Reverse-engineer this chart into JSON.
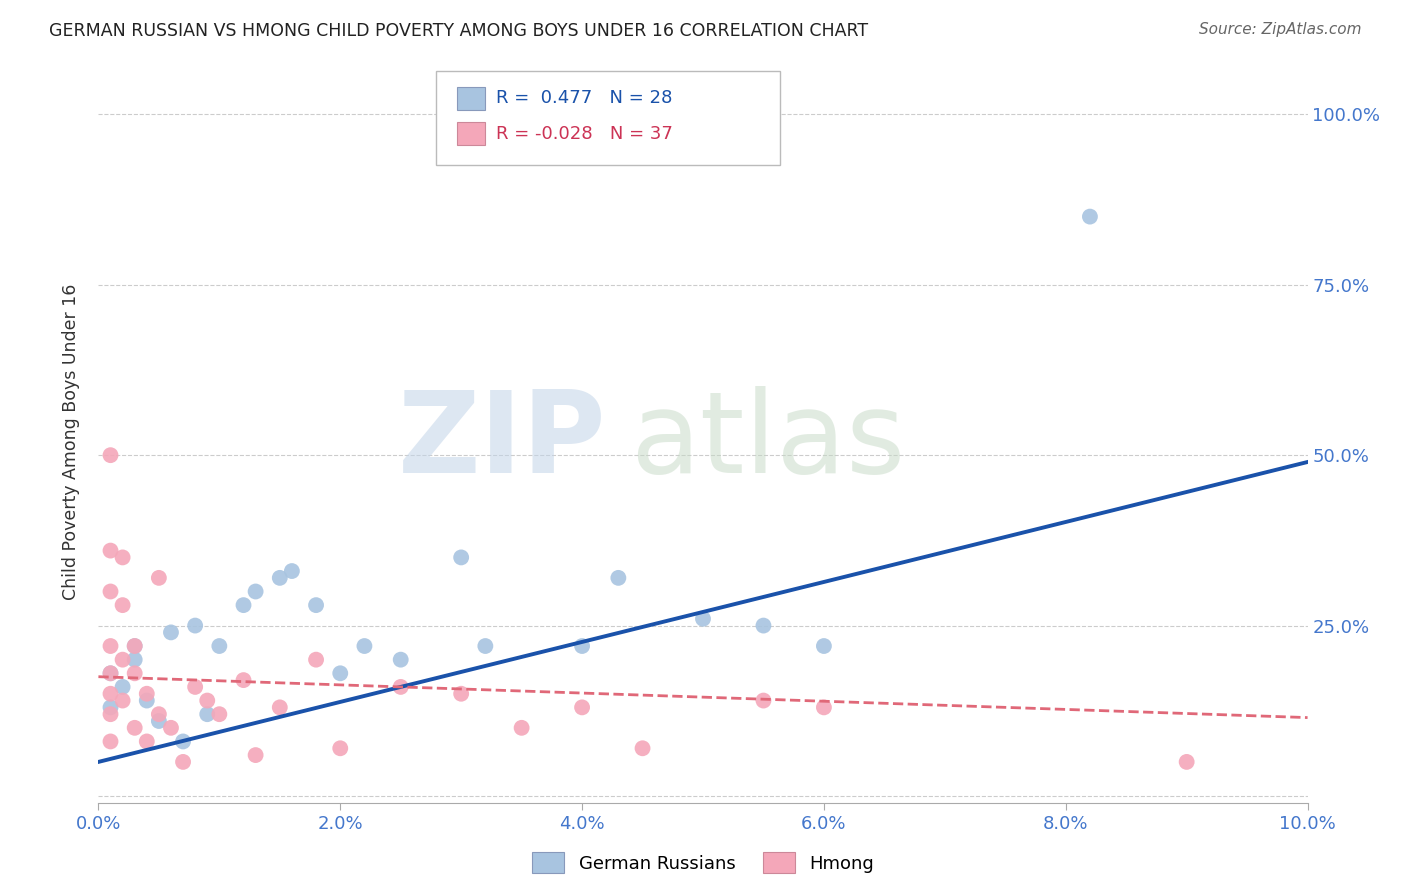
{
  "title": "GERMAN RUSSIAN VS HMONG CHILD POVERTY AMONG BOYS UNDER 16 CORRELATION CHART",
  "source": "Source: ZipAtlas.com",
  "ylabel": "Child Poverty Among Boys Under 16",
  "xlim": [
    0.0,
    0.1
  ],
  "ylim": [
    -0.01,
    1.05
  ],
  "xticks": [
    0.0,
    0.02,
    0.04,
    0.06,
    0.08,
    0.1
  ],
  "yticks": [
    0.0,
    0.25,
    0.5,
    0.75,
    1.0
  ],
  "xtick_labels": [
    "0.0%",
    "2.0%",
    "4.0%",
    "6.0%",
    "8.0%",
    "10.0%"
  ],
  "ytick_labels_right": [
    "",
    "25.0%",
    "50.0%",
    "75.0%",
    "100.0%"
  ],
  "german_russian_R": 0.477,
  "german_russian_N": 28,
  "hmong_R": -0.028,
  "hmong_N": 37,
  "gr_color": "#a8c4e0",
  "hm_color": "#f4a7b9",
  "gr_line_color": "#1a52aa",
  "hm_line_color": "#e06878",
  "bg_color": "#ffffff",
  "grid_color": "#cccccc",
  "gr_line_x0": 0.0,
  "gr_line_y0": 0.05,
  "gr_line_x1": 0.1,
  "gr_line_y1": 0.49,
  "hm_line_x0": 0.0,
  "hm_line_y0": 0.175,
  "hm_line_x1": 0.1,
  "hm_line_y1": 0.115,
  "german_russian_x": [
    0.001,
    0.001,
    0.002,
    0.003,
    0.003,
    0.004,
    0.005,
    0.006,
    0.007,
    0.008,
    0.009,
    0.01,
    0.012,
    0.013,
    0.015,
    0.016,
    0.018,
    0.02,
    0.022,
    0.025,
    0.03,
    0.032,
    0.04,
    0.043,
    0.05,
    0.055,
    0.06,
    0.082
  ],
  "german_russian_y": [
    0.13,
    0.18,
    0.16,
    0.2,
    0.22,
    0.14,
    0.11,
    0.24,
    0.08,
    0.25,
    0.12,
    0.22,
    0.28,
    0.3,
    0.32,
    0.33,
    0.28,
    0.18,
    0.22,
    0.2,
    0.35,
    0.22,
    0.22,
    0.32,
    0.26,
    0.25,
    0.22,
    0.85
  ],
  "hmong_x": [
    0.001,
    0.001,
    0.001,
    0.001,
    0.001,
    0.001,
    0.001,
    0.001,
    0.002,
    0.002,
    0.002,
    0.002,
    0.003,
    0.003,
    0.003,
    0.004,
    0.004,
    0.005,
    0.005,
    0.006,
    0.007,
    0.008,
    0.009,
    0.01,
    0.012,
    0.013,
    0.015,
    0.018,
    0.02,
    0.025,
    0.03,
    0.035,
    0.04,
    0.045,
    0.055,
    0.06,
    0.09
  ],
  "hmong_y": [
    0.5,
    0.36,
    0.3,
    0.22,
    0.18,
    0.15,
    0.12,
    0.08,
    0.35,
    0.28,
    0.2,
    0.14,
    0.22,
    0.18,
    0.1,
    0.15,
    0.08,
    0.32,
    0.12,
    0.1,
    0.05,
    0.16,
    0.14,
    0.12,
    0.17,
    0.06,
    0.13,
    0.2,
    0.07,
    0.16,
    0.15,
    0.1,
    0.13,
    0.07,
    0.14,
    0.13,
    0.05
  ]
}
